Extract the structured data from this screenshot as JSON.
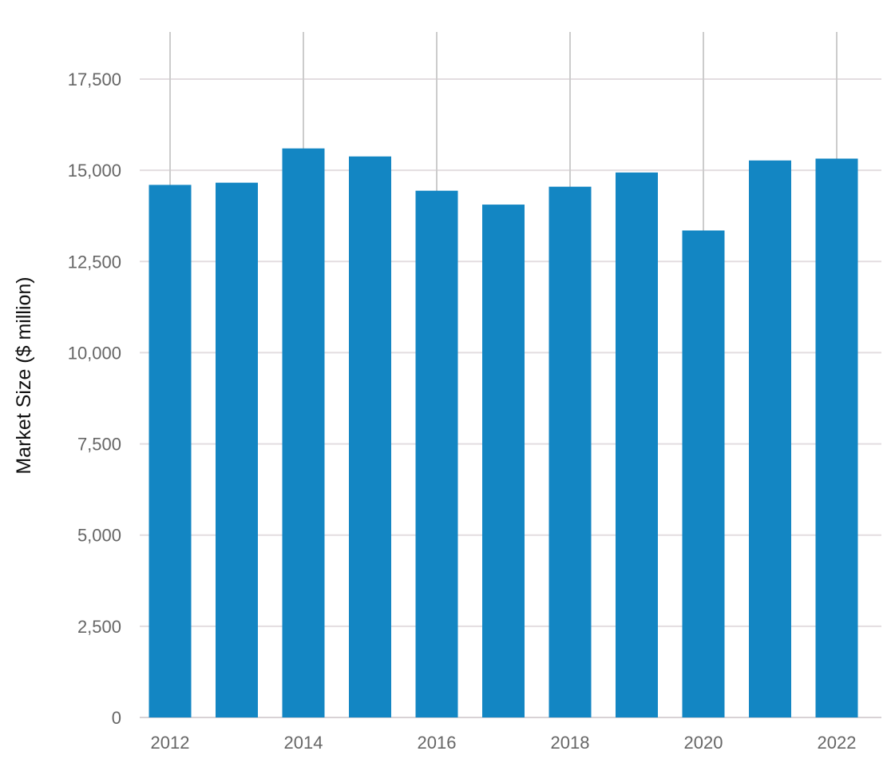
{
  "chart_data": {
    "type": "bar",
    "title": "",
    "xlabel": "",
    "ylabel": "Market Size ($ million)",
    "categories": [
      "2012",
      "2013",
      "2014",
      "2015",
      "2016",
      "2017",
      "2018",
      "2019",
      "2020",
      "2021",
      "2022"
    ],
    "values": [
      14600,
      14660,
      15600,
      15380,
      14440,
      14060,
      14550,
      14940,
      13350,
      15270,
      15320
    ],
    "ylim": [
      0,
      18750
    ],
    "yticks": [
      0,
      2500,
      5000,
      7500,
      10000,
      12500,
      15000,
      17500
    ],
    "ytick_labels": [
      "0",
      "2,500",
      "5,000",
      "7,500",
      "10,000",
      "12,500",
      "15,000",
      "17,500"
    ],
    "xtick_labels": [
      "2012",
      "2014",
      "2016",
      "2018",
      "2020",
      "2022"
    ],
    "grid": true,
    "legend": "none",
    "colors": {
      "bar": "#1386c3",
      "grid": "#e3dde0",
      "vgrid": "#cccccc",
      "tick_text": "#666666",
      "label_text": "#111111"
    }
  }
}
